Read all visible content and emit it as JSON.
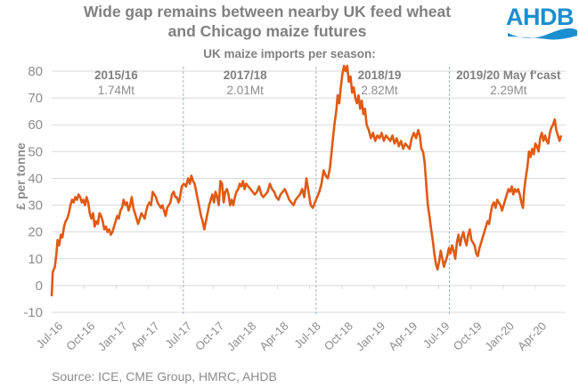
{
  "header": {
    "title_line1": "Wide gap remains between nearby UK feed wheat",
    "title_line2": "and Chicago maize futures",
    "logo_text": "AHDB",
    "brand_color": "#1a8fd0"
  },
  "footer": {
    "source": "Source: ICE, CME Group, HMRC, AHDB"
  },
  "chart_data": {
    "type": "line",
    "title": "Wide gap remains between nearby UK feed wheat and Chicago maize futures",
    "subtitle": "UK maize imports per season:",
    "xlabel": "",
    "ylabel": "£ per tonne",
    "ylim": [
      -10,
      80
    ],
    "yticks": [
      -10,
      0,
      10,
      20,
      30,
      40,
      50,
      60,
      70,
      80
    ],
    "grid": true,
    "x_tick_labels": [
      "Jul-16",
      "Oct-16",
      "Jan-17",
      "Apr-17",
      "Jul-17",
      "Oct-17",
      "Jan-18",
      "Apr-18",
      "Jul-18",
      "Oct-18",
      "Jan-19",
      "Apr-19",
      "Jul-19",
      "Oct-19",
      "Jan-20",
      "Apr-20"
    ],
    "x_unit": "months since Jul-16",
    "xlim": [
      0,
      47.5
    ],
    "line_color": "#e05a14",
    "season_dividers_month": [
      12.25,
      24.6,
      37.0
    ],
    "seasons": [
      {
        "name": "2015/16",
        "imports": "1.74Mt",
        "center_month": 6
      },
      {
        "name": "2017/18",
        "imports": "2.01Mt",
        "center_month": 18
      },
      {
        "name": "2018/19",
        "imports": "2.82Mt",
        "center_month": 30.5
      },
      {
        "name": "2019/20 May f'cast",
        "imports": "2.29Mt",
        "center_month": 42.5
      }
    ],
    "series": [
      {
        "name": "UK feed wheat minus Chicago maize futures",
        "points": [
          [
            0.0,
            -4
          ],
          [
            0.1,
            5
          ],
          [
            0.3,
            7
          ],
          [
            0.45,
            12
          ],
          [
            0.55,
            17
          ],
          [
            0.7,
            15
          ],
          [
            0.85,
            19
          ],
          [
            1.0,
            18
          ],
          [
            1.15,
            22
          ],
          [
            1.3,
            24
          ],
          [
            1.45,
            25
          ],
          [
            1.6,
            27
          ],
          [
            1.75,
            30
          ],
          [
            1.9,
            32
          ],
          [
            2.05,
            31
          ],
          [
            2.2,
            33
          ],
          [
            2.35,
            32
          ],
          [
            2.5,
            34
          ],
          [
            2.65,
            33
          ],
          [
            2.8,
            31
          ],
          [
            2.95,
            32
          ],
          [
            3.1,
            30
          ],
          [
            3.25,
            33
          ],
          [
            3.4,
            31
          ],
          [
            3.55,
            27
          ],
          [
            3.7,
            25
          ],
          [
            3.85,
            27
          ],
          [
            4.0,
            22
          ],
          [
            4.15,
            24
          ],
          [
            4.3,
            23
          ],
          [
            4.45,
            27
          ],
          [
            4.6,
            26
          ],
          [
            4.75,
            24
          ],
          [
            4.9,
            21
          ],
          [
            5.05,
            22
          ],
          [
            5.2,
            20
          ],
          [
            5.35,
            21
          ],
          [
            5.5,
            19
          ],
          [
            5.65,
            20
          ],
          [
            5.8,
            22
          ],
          [
            5.95,
            24
          ],
          [
            6.1,
            26
          ],
          [
            6.25,
            25
          ],
          [
            6.4,
            28
          ],
          [
            6.55,
            29
          ],
          [
            6.7,
            32
          ],
          [
            6.85,
            30
          ],
          [
            7.0,
            31
          ],
          [
            7.15,
            28
          ],
          [
            7.3,
            30
          ],
          [
            7.45,
            33
          ],
          [
            7.6,
            29
          ],
          [
            7.75,
            27
          ],
          [
            7.9,
            25
          ],
          [
            8.05,
            23
          ],
          [
            8.2,
            25
          ],
          [
            8.35,
            27
          ],
          [
            8.5,
            26
          ],
          [
            8.65,
            25
          ],
          [
            8.8,
            28
          ],
          [
            8.95,
            30
          ],
          [
            9.1,
            31
          ],
          [
            9.25,
            30
          ],
          [
            9.4,
            35
          ],
          [
            9.55,
            34
          ],
          [
            9.7,
            33
          ],
          [
            9.85,
            31
          ],
          [
            10.0,
            30
          ],
          [
            10.15,
            29
          ],
          [
            10.3,
            30
          ],
          [
            10.45,
            28
          ],
          [
            10.6,
            26
          ],
          [
            10.75,
            29
          ],
          [
            10.9,
            30
          ],
          [
            11.05,
            31
          ],
          [
            11.2,
            34
          ],
          [
            11.35,
            35
          ],
          [
            11.5,
            33
          ],
          [
            11.65,
            33
          ],
          [
            11.8,
            31
          ],
          [
            11.9,
            32
          ],
          [
            12.1,
            37
          ],
          [
            12.3,
            38
          ],
          [
            12.5,
            37
          ],
          [
            12.7,
            40
          ],
          [
            12.85,
            38
          ],
          [
            13.0,
            41
          ],
          [
            13.15,
            39
          ],
          [
            13.3,
            38
          ],
          [
            13.45,
            35
          ],
          [
            13.6,
            32
          ],
          [
            13.75,
            29
          ],
          [
            13.9,
            26
          ],
          [
            14.05,
            24
          ],
          [
            14.2,
            21
          ],
          [
            14.35,
            24
          ],
          [
            14.5,
            27
          ],
          [
            14.65,
            30
          ],
          [
            14.8,
            32
          ],
          [
            14.95,
            34
          ],
          [
            15.1,
            31
          ],
          [
            15.25,
            35
          ],
          [
            15.4,
            33
          ],
          [
            15.55,
            30
          ],
          [
            15.7,
            39
          ],
          [
            15.85,
            38
          ],
          [
            16.0,
            31
          ],
          [
            16.15,
            35
          ],
          [
            16.3,
            36
          ],
          [
            16.45,
            34
          ],
          [
            16.6,
            30
          ],
          [
            16.75,
            32
          ],
          [
            16.9,
            30
          ],
          [
            17.05,
            33
          ],
          [
            17.2,
            35
          ],
          [
            17.35,
            36
          ],
          [
            17.5,
            38
          ],
          [
            17.65,
            37
          ],
          [
            17.8,
            39
          ],
          [
            17.95,
            36
          ],
          [
            18.1,
            38
          ],
          [
            18.3,
            37
          ],
          [
            18.5,
            36
          ],
          [
            18.7,
            35
          ],
          [
            18.9,
            34
          ],
          [
            19.1,
            35
          ],
          [
            19.3,
            37
          ],
          [
            19.5,
            34
          ],
          [
            19.7,
            33
          ],
          [
            19.9,
            34
          ],
          [
            20.1,
            35
          ],
          [
            20.3,
            38
          ],
          [
            20.5,
            36
          ],
          [
            20.7,
            35
          ],
          [
            20.9,
            33
          ],
          [
            21.1,
            32
          ],
          [
            21.3,
            34
          ],
          [
            21.5,
            35
          ],
          [
            21.7,
            36
          ],
          [
            21.9,
            34
          ],
          [
            22.1,
            32
          ],
          [
            22.3,
            31
          ],
          [
            22.5,
            30
          ],
          [
            22.7,
            32
          ],
          [
            22.9,
            33
          ],
          [
            23.1,
            34
          ],
          [
            23.3,
            36
          ],
          [
            23.5,
            33
          ],
          [
            23.7,
            40
          ],
          [
            23.9,
            35
          ],
          [
            24.1,
            30
          ],
          [
            24.3,
            29
          ],
          [
            24.5,
            31
          ],
          [
            24.7,
            33
          ],
          [
            24.9,
            35
          ],
          [
            25.1,
            38
          ],
          [
            25.3,
            43
          ],
          [
            25.5,
            41
          ],
          [
            25.7,
            40
          ],
          [
            25.9,
            44
          ],
          [
            26.1,
            52
          ],
          [
            26.3,
            60
          ],
          [
            26.5,
            66
          ],
          [
            26.6,
            71
          ],
          [
            26.75,
            68
          ],
          [
            26.9,
            74
          ],
          [
            27.05,
            79
          ],
          [
            27.2,
            82
          ],
          [
            27.35,
            80
          ],
          [
            27.5,
            82
          ],
          [
            27.65,
            76
          ],
          [
            27.8,
            78
          ],
          [
            27.95,
            72
          ],
          [
            28.1,
            74
          ],
          [
            28.25,
            70
          ],
          [
            28.4,
            68
          ],
          [
            28.55,
            71
          ],
          [
            28.7,
            66
          ],
          [
            28.85,
            69
          ],
          [
            29.0,
            64
          ],
          [
            29.15,
            66
          ],
          [
            29.3,
            60
          ],
          [
            29.5,
            58
          ],
          [
            29.7,
            55
          ],
          [
            29.9,
            57
          ],
          [
            30.1,
            54
          ],
          [
            30.3,
            56
          ],
          [
            30.5,
            55
          ],
          [
            30.7,
            57
          ],
          [
            30.9,
            54
          ],
          [
            31.1,
            56
          ],
          [
            31.3,
            55
          ],
          [
            31.5,
            54
          ],
          [
            31.7,
            56
          ],
          [
            31.9,
            53
          ],
          [
            32.1,
            55
          ],
          [
            32.3,
            52
          ],
          [
            32.5,
            54
          ],
          [
            32.7,
            51
          ],
          [
            32.9,
            53
          ],
          [
            33.1,
            52
          ],
          [
            33.3,
            51
          ],
          [
            33.5,
            55
          ],
          [
            33.7,
            57
          ],
          [
            33.9,
            55
          ],
          [
            34.1,
            58
          ],
          [
            34.25,
            56
          ],
          [
            34.4,
            51
          ],
          [
            34.55,
            50
          ],
          [
            34.7,
            46
          ],
          [
            34.85,
            38
          ],
          [
            35.0,
            30
          ],
          [
            35.15,
            26
          ],
          [
            35.3,
            21
          ],
          [
            35.45,
            17
          ],
          [
            35.6,
            12
          ],
          [
            35.75,
            8
          ],
          [
            35.9,
            6
          ],
          [
            36.05,
            9
          ],
          [
            36.2,
            13
          ],
          [
            36.35,
            10
          ],
          [
            36.5,
            7
          ],
          [
            36.65,
            9
          ],
          [
            36.8,
            11
          ],
          [
            36.95,
            14
          ],
          [
            37.1,
            12
          ],
          [
            37.25,
            15
          ],
          [
            37.4,
            13
          ],
          [
            37.55,
            10
          ],
          [
            37.7,
            16
          ],
          [
            37.85,
            19
          ],
          [
            38.0,
            15
          ],
          [
            38.15,
            18
          ],
          [
            38.3,
            20
          ],
          [
            38.45,
            17
          ],
          [
            38.6,
            15
          ],
          [
            38.75,
            19
          ],
          [
            38.9,
            21
          ],
          [
            39.05,
            17
          ],
          [
            39.2,
            16
          ],
          [
            39.35,
            15
          ],
          [
            39.5,
            12
          ],
          [
            39.65,
            11
          ],
          [
            39.8,
            14
          ],
          [
            39.95,
            16
          ],
          [
            40.1,
            18
          ],
          [
            40.25,
            20
          ],
          [
            40.4,
            22
          ],
          [
            40.55,
            24
          ],
          [
            40.7,
            23
          ],
          [
            40.85,
            27
          ],
          [
            41.0,
            30
          ],
          [
            41.15,
            31
          ],
          [
            41.3,
            29
          ],
          [
            41.45,
            32
          ],
          [
            41.6,
            31
          ],
          [
            41.75,
            30
          ],
          [
            41.9,
            28
          ],
          [
            42.05,
            30
          ],
          [
            42.2,
            32
          ],
          [
            42.35,
            34
          ],
          [
            42.5,
            36
          ],
          [
            42.65,
            35
          ],
          [
            42.8,
            37
          ],
          [
            42.95,
            34
          ],
          [
            43.1,
            36
          ],
          [
            43.25,
            35
          ],
          [
            43.4,
            36
          ],
          [
            43.55,
            34
          ],
          [
            43.7,
            31
          ],
          [
            43.85,
            29
          ],
          [
            43.95,
            35
          ],
          [
            44.1,
            40
          ],
          [
            44.25,
            44
          ],
          [
            44.4,
            50
          ],
          [
            44.55,
            48
          ],
          [
            44.7,
            51
          ],
          [
            44.85,
            49
          ],
          [
            45.0,
            53
          ],
          [
            45.15,
            52
          ],
          [
            45.3,
            50
          ],
          [
            45.45,
            55
          ],
          [
            45.6,
            57
          ],
          [
            45.75,
            54
          ],
          [
            45.9,
            56
          ],
          [
            46.05,
            54
          ],
          [
            46.2,
            53
          ],
          [
            46.35,
            57
          ],
          [
            46.5,
            59
          ],
          [
            46.65,
            60
          ],
          [
            46.8,
            62
          ],
          [
            46.95,
            58
          ],
          [
            47.1,
            56
          ],
          [
            47.25,
            54
          ],
          [
            47.4,
            56
          ]
        ]
      }
    ]
  }
}
